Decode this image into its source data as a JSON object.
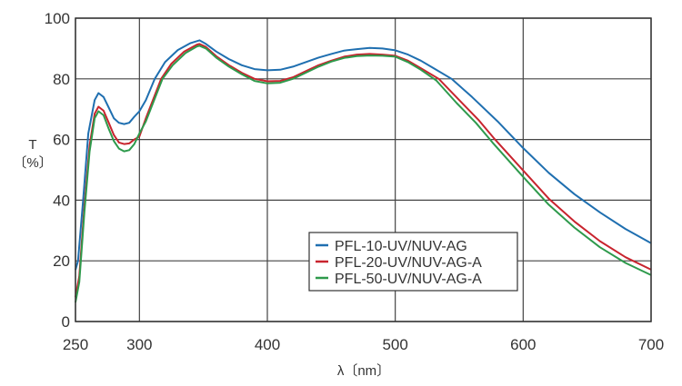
{
  "chart_data": {
    "type": "line",
    "title": "",
    "xlabel": "λ〔nm〕",
    "ylabel_main": "T",
    "ylabel_unit": "〔%〕",
    "xlim": [
      250,
      700
    ],
    "ylim": [
      0,
      100
    ],
    "xticks": [
      "250",
      "300",
      "400",
      "500",
      "600",
      "700"
    ],
    "xtick_values": [
      250,
      300,
      400,
      500,
      600,
      700
    ],
    "yticks": [
      "0",
      "20",
      "40",
      "60",
      "80",
      "100"
    ],
    "ytick_values": [
      0,
      20,
      40,
      60,
      80,
      100
    ],
    "grid": true,
    "legend_position": "lower-center-right",
    "series": [
      {
        "name": "PFL-10-UV/NUV-AG",
        "color": "#1f6fb0",
        "x": [
          250,
          252,
          256,
          260,
          265,
          268,
          272,
          276,
          280,
          284,
          288,
          292,
          296,
          300,
          305,
          312,
          320,
          330,
          340,
          347,
          352,
          360,
          370,
          380,
          390,
          400,
          410,
          420,
          430,
          440,
          450,
          460,
          470,
          480,
          490,
          500,
          510,
          520,
          530,
          544,
          560,
          580,
          599,
          620,
          640,
          660,
          680,
          700
        ],
        "y": [
          17,
          20,
          40,
          62,
          73,
          75.3,
          74,
          70.5,
          67,
          65.5,
          65.1,
          65.5,
          67.5,
          69.3,
          73,
          80,
          85.5,
          89.5,
          91.8,
          92.7,
          91.5,
          89,
          86.5,
          84.5,
          83.2,
          82.8,
          83,
          84,
          85.5,
          87,
          88.2,
          89.3,
          89.8,
          90.2,
          90,
          89.4,
          88,
          86,
          83.5,
          80,
          74,
          66,
          57.6,
          49,
          42,
          36,
          30.5,
          25.8
        ]
      },
      {
        "name": "PFL-20-UV/NUV-AG-A",
        "color": "#c8242e",
        "x": [
          250,
          253,
          257,
          261,
          265,
          268,
          272,
          276,
          280,
          284,
          288,
          292,
          296,
          300,
          305,
          317,
          325,
          335,
          345,
          347,
          352,
          360,
          370,
          380,
          390,
          400,
          410,
          420,
          430,
          440,
          450,
          460,
          470,
          480,
          490,
          500,
          510,
          520,
          534,
          550,
          565,
          578,
          600,
          620,
          640,
          660,
          680,
          700
        ],
        "y": [
          8,
          15,
          38,
          58,
          68.5,
          70.8,
          69.5,
          65.5,
          61.5,
          59,
          58.5,
          58.7,
          60,
          61,
          67,
          80,
          85,
          89,
          91.3,
          91.5,
          90.5,
          87.5,
          84.5,
          82,
          80,
          79.2,
          79.3,
          80.5,
          82.5,
          84.5,
          86,
          87.3,
          88,
          88.2,
          88,
          87.6,
          86,
          83.5,
          80,
          73,
          66.5,
          60,
          49.8,
          40.5,
          33,
          26.5,
          21.2,
          17.1
        ]
      },
      {
        "name": "PFL-50-UV/NUV-AG-A",
        "color": "#2e9a4c",
        "x": [
          250,
          253,
          257,
          261,
          265,
          268,
          272,
          276,
          280,
          284,
          288,
          292,
          296,
          300,
          305,
          318,
          326,
          336,
          345,
          347,
          352,
          360,
          370,
          380,
          390,
          400,
          410,
          420,
          430,
          440,
          450,
          460,
          470,
          480,
          490,
          500,
          510,
          520,
          532,
          548,
          563,
          576,
          600,
          620,
          640,
          660,
          680,
          700
        ],
        "y": [
          6.3,
          13,
          36,
          56,
          67,
          69.3,
          68,
          63.5,
          59.5,
          57,
          56.1,
          56.5,
          58.5,
          62,
          66,
          80,
          84.5,
          88.5,
          90.7,
          90.9,
          90,
          87,
          84,
          81.5,
          79.3,
          78.5,
          78.7,
          80,
          82,
          84,
          85.7,
          86.9,
          87.5,
          87.7,
          87.6,
          87.3,
          85.5,
          83,
          79.5,
          72,
          65.5,
          59,
          47.7,
          38.5,
          31,
          24.5,
          19.3,
          15.3
        ]
      }
    ]
  }
}
